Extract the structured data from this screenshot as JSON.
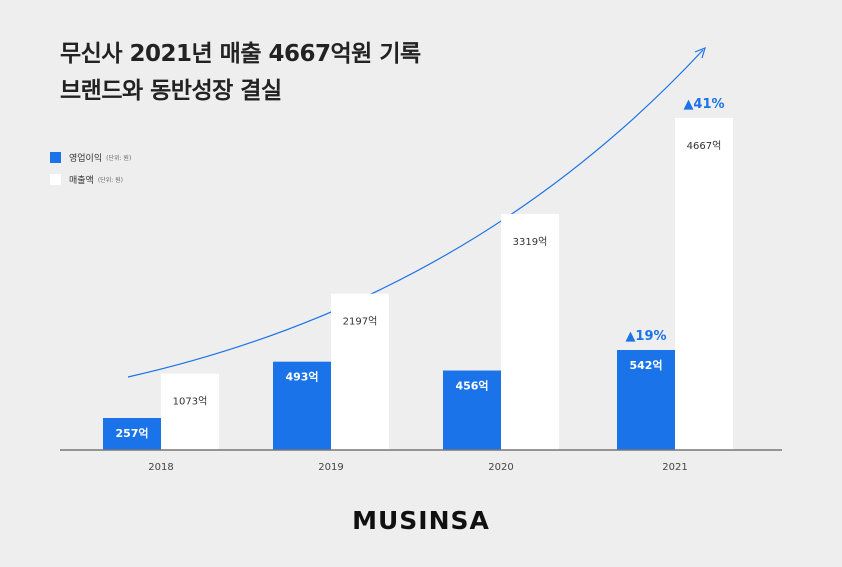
{
  "title": {
    "line1": "무신사 2021년 매출 4667억원 기록",
    "line2": "브랜드와 동반성장 결실"
  },
  "legend": [
    {
      "label": "영업이익",
      "unit": "(단위: 원)",
      "color": "#1a73e8"
    },
    {
      "label": "매출액",
      "unit": "(단위: 원)",
      "color": "#ffffff"
    }
  ],
  "logo": "MUSINSA",
  "colors": {
    "accent": "#1a73e8",
    "background": "#eeeeee",
    "revenue_bar": "#ffffff",
    "axis": "#777777"
  },
  "chart_data": {
    "type": "bar",
    "categories": [
      "2018",
      "2019",
      "2020",
      "2021"
    ],
    "series": [
      {
        "name": "영업이익",
        "values": [
          257,
          493,
          456,
          542
        ],
        "labels": [
          "257억",
          "493억",
          "456억",
          "542억"
        ],
        "color": "#1a73e8"
      },
      {
        "name": "매출액",
        "values": [
          1073,
          2197,
          3319,
          4667
        ],
        "labels": [
          "1073억",
          "2197억",
          "3319억",
          "4667억"
        ],
        "color": "#ffffff"
      }
    ],
    "annotations": [
      {
        "category": "2021",
        "series": "영업이익",
        "text": "▲19%"
      },
      {
        "category": "2021",
        "series": "매출액",
        "text": "▲41%"
      }
    ],
    "trend_arrow": true,
    "ylim": [
      0,
      4667
    ],
    "grid": false,
    "legend_position": "top-left"
  }
}
